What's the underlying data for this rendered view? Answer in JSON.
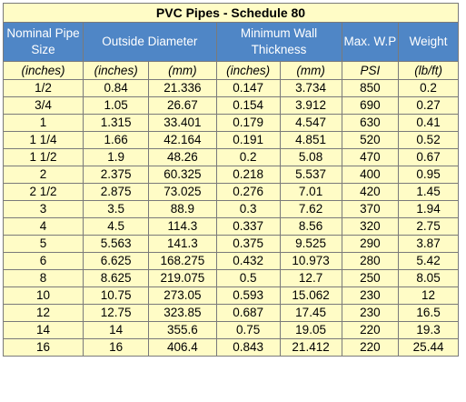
{
  "title": "PVC  Pipes - Schedule 80",
  "headers": {
    "nominal": "Nominal Pipe Size",
    "outside": "Outside Diameter",
    "wall": "Minimum Wall Thickness",
    "wp": "Max. W.P",
    "weight": "Weight"
  },
  "units": [
    "(inches)",
    "(inches)",
    "(mm)",
    "(inches)",
    "(mm)",
    "PSI",
    "(lb/ft)"
  ],
  "rows": [
    [
      "1/2",
      "0.84",
      "21.336",
      "0.147",
      "3.734",
      "850",
      "0.2"
    ],
    [
      "3/4",
      "1.05",
      "26.67",
      "0.154",
      "3.912",
      "690",
      "0.27"
    ],
    [
      "1",
      "1.315",
      "33.401",
      "0.179",
      "4.547",
      "630",
      "0.41"
    ],
    [
      "1 1/4",
      "1.66",
      "42.164",
      "0.191",
      "4.851",
      "520",
      "0.52"
    ],
    [
      "1 1/2",
      "1.9",
      "48.26",
      "0.2",
      "5.08",
      "470",
      "0.67"
    ],
    [
      "2",
      "2.375",
      "60.325",
      "0.218",
      "5.537",
      "400",
      "0.95"
    ],
    [
      "2 1/2",
      "2.875",
      "73.025",
      "0.276",
      "7.01",
      "420",
      "1.45"
    ],
    [
      "3",
      "3.5",
      "88.9",
      "0.3",
      "7.62",
      "370",
      "1.94"
    ],
    [
      "4",
      "4.5",
      "114.3",
      "0.337",
      "8.56",
      "320",
      "2.75"
    ],
    [
      "5",
      "5.563",
      "141.3",
      "0.375",
      "9.525",
      "290",
      "3.87"
    ],
    [
      "6",
      "6.625",
      "168.275",
      "0.432",
      "10.973",
      "280",
      "5.42"
    ],
    [
      "8",
      "8.625",
      "219.075",
      "0.5",
      "12.7",
      "250",
      "8.05"
    ],
    [
      "10",
      "10.75",
      "273.05",
      "0.593",
      "15.062",
      "230",
      "12"
    ],
    [
      "12",
      "12.75",
      "323.85",
      "0.687",
      "17.45",
      "230",
      "16.5"
    ],
    [
      "14",
      "14",
      "355.6",
      "0.75",
      "19.05",
      "220",
      "19.3"
    ],
    [
      "16",
      "16",
      "406.4",
      "0.843",
      "21.412",
      "220",
      "25.44"
    ]
  ],
  "colors": {
    "header_bg": "#4f86c6",
    "cell_bg": "#fffcc6",
    "border": "#7a7a7a"
  }
}
